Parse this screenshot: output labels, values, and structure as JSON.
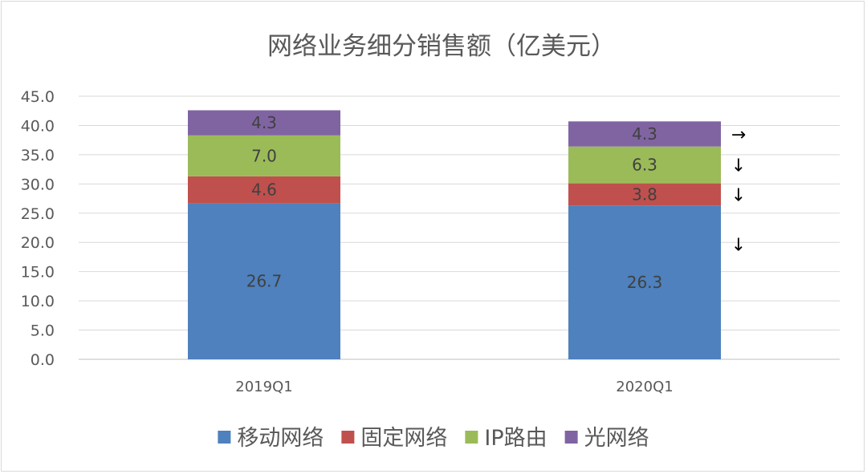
{
  "chart_data": {
    "type": "bar",
    "stacked": true,
    "title": "网络业务细分销售额（亿美元）",
    "categories": [
      "2019Q1",
      "2020Q1"
    ],
    "series": [
      {
        "name": "移动网络",
        "values": [
          26.7,
          26.3
        ],
        "color": "#4e81bd"
      },
      {
        "name": "固定网络",
        "values": [
          4.6,
          3.8
        ],
        "color": "#c0504d"
      },
      {
        "name": "IP路由",
        "values": [
          7.0,
          6.3
        ],
        "color": "#9bbb59"
      },
      {
        "name": "光网络",
        "values": [
          4.3,
          4.3
        ],
        "color": "#8064a2"
      }
    ],
    "ylim": [
      0,
      45
    ],
    "yticks": [
      "0.0",
      "5.0",
      "10.0",
      "15.0",
      "20.0",
      "25.0",
      "30.0",
      "35.0",
      "40.0",
      "45.0"
    ],
    "grid": true,
    "legend_position": "bottom",
    "annotations": [
      {
        "category": "2020Q1",
        "series": "光网络",
        "text": "→"
      },
      {
        "category": "2020Q1",
        "series": "IP路由",
        "text": "↓"
      },
      {
        "category": "2020Q1",
        "series": "固定网络",
        "text": "↓"
      },
      {
        "category": "2020Q1",
        "series": "移动网络",
        "text": "↓"
      }
    ]
  }
}
